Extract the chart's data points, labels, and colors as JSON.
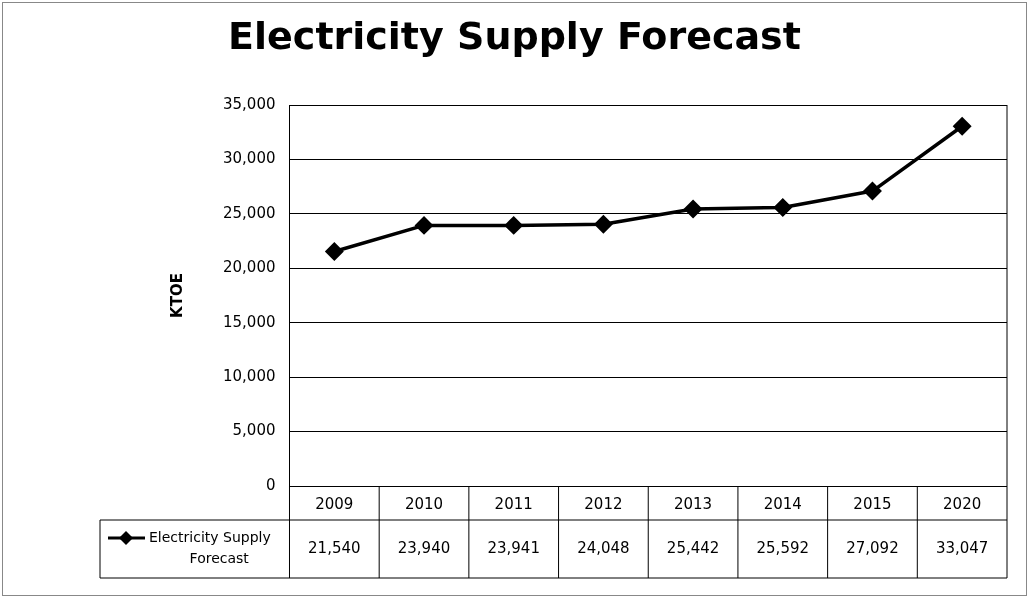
{
  "chart_data": {
    "type": "line",
    "title": "Electricity Supply Forecast",
    "ylabel": "KTOE",
    "categories": [
      "2009",
      "2010",
      "2011",
      "2012",
      "2013",
      "2014",
      "2015",
      "2020"
    ],
    "series": [
      {
        "name": "Electricity Supply Forecast",
        "color": "#000000",
        "values": [
          21540,
          23940,
          23941,
          24048,
          25442,
          25592,
          27092,
          33047
        ],
        "value_labels": [
          "21,540",
          "23,940",
          "23,941",
          "24,048",
          "25,442",
          "25,592",
          "27,092",
          "33,047"
        ]
      }
    ],
    "ylim": [
      0,
      35000
    ],
    "yticks": [
      0,
      {
        "value": 5000,
        "label": "5,000"
      },
      {
        "value": 10000,
        "label": "10,000"
      },
      {
        "value": 15000,
        "label": "15,000"
      },
      {
        "value": 20000,
        "label": "20,000"
      },
      {
        "value": 25000,
        "label": "25,000"
      },
      {
        "value": 30000,
        "label": "30,000"
      },
      {
        "value": 35000,
        "label": "35,000"
      }
    ],
    "grid": "y",
    "legend": "bottom left",
    "marker": "diamond",
    "line_style": "solid"
  }
}
